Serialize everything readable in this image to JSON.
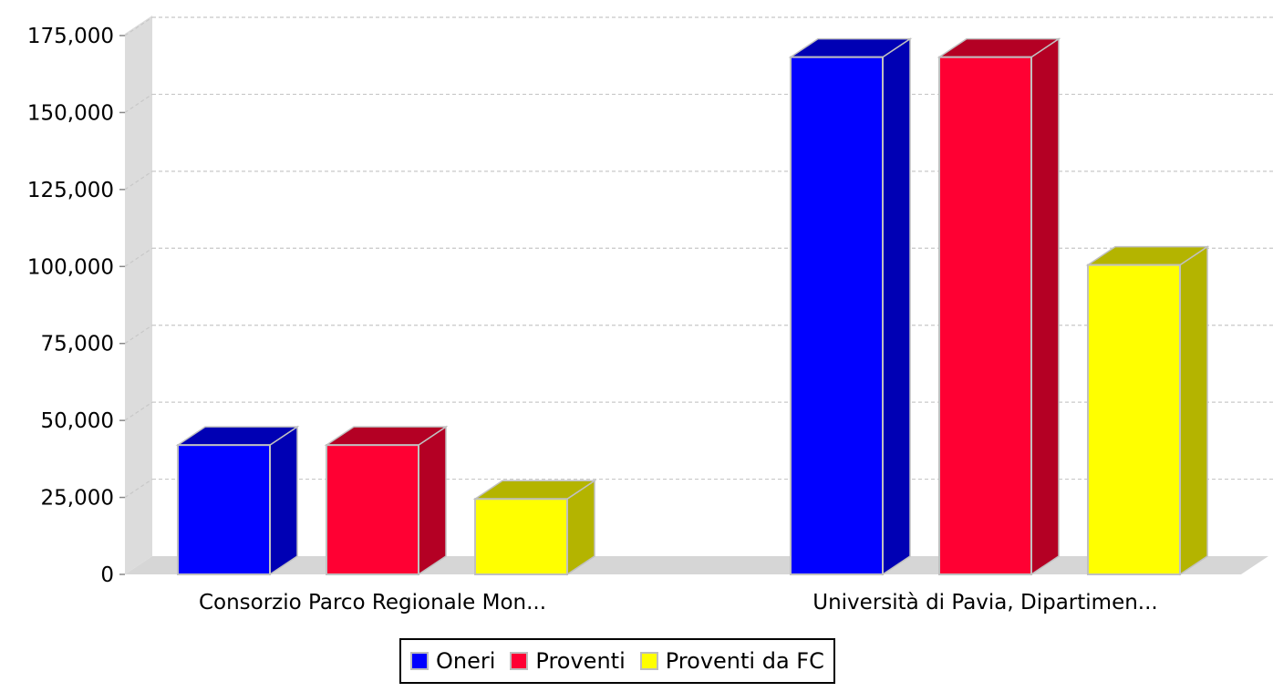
{
  "chart_data": {
    "type": "bar",
    "categories": [
      "Consorzio Parco Regionale Mon...",
      "Università di Pavia, Dipartimen..."
    ],
    "series": [
      {
        "name": "Oneri",
        "values": [
          42000,
          168000
        ],
        "color": "#0000ff",
        "side_color": "#0000b4"
      },
      {
        "name": "Proventi",
        "values": [
          42000,
          168000
        ],
        "color": "#ff0033",
        "side_color": "#b40024"
      },
      {
        "name": "Proventi da FC",
        "values": [
          24500,
          100500
        ],
        "color": "#ffff00",
        "side_color": "#b4b400"
      }
    ],
    "ylim": [
      0,
      175000
    ],
    "yticks": [
      0,
      25000,
      50000,
      75000,
      100000,
      125000,
      150000,
      175000
    ],
    "ytick_labels": [
      "0",
      "25,000",
      "50,000",
      "75,000",
      "100,000",
      "125,000",
      "150,000",
      "175,000"
    ],
    "grid": true,
    "legend_position": "bottom-center",
    "three_d": true
  }
}
